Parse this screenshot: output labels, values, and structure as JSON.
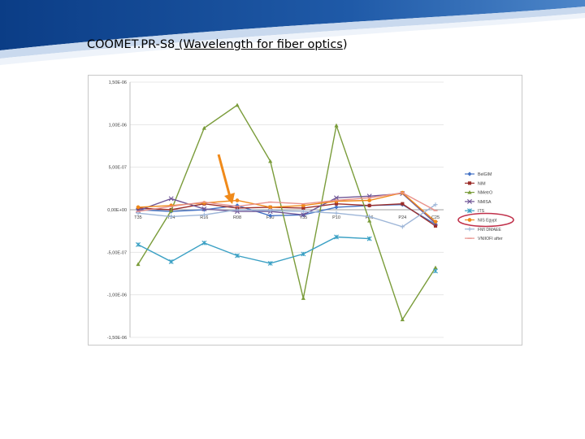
{
  "slide": {
    "title_main": "COOMET.PR-S8",
    "title_paren": " (Wavelength for fiber optics",
    "title_close": ")"
  },
  "colors": {
    "banner_blue": "#1f5aa8",
    "banner_dark": "#0b3d86",
    "arrow": "#f08a1a",
    "highlight": "#c0304a"
  },
  "chart_data": {
    "type": "line",
    "title": "",
    "xlabel": "",
    "ylabel": "",
    "categories": [
      "T35",
      "T24",
      "R16",
      "R08",
      "F30",
      "Y35",
      "P10",
      "P16",
      "P24",
      "C25"
    ],
    "ylim": [
      -1.5e-06,
      1.5e-06
    ],
    "yticks": [
      1.5e-06,
      1e-06,
      5e-07,
      0,
      -5e-07,
      -1e-06,
      -1.5e-06
    ],
    "ytick_labels": [
      "1,50E-06",
      "1,00E-06",
      "5,00E-07",
      "0,00E+00",
      "-5,00E-07",
      "-1,00E-06",
      "-1,50E-06"
    ],
    "grid": true,
    "legend_position": "right",
    "highlighted_legend_entry": "NIS Egypt",
    "series": [
      {
        "name": "BelGIM",
        "color": "#4472c4",
        "marker": "diamond",
        "values": [
          0,
          -2e-08,
          0,
          5e-08,
          -7e-08,
          -6e-08,
          3e-08,
          5e-08,
          6e-08,
          -1.7e-07
        ]
      },
      {
        "name": "NIM",
        "color": "#9c2e2a",
        "marker": "square",
        "values": [
          2e-08,
          0,
          7e-08,
          2e-08,
          3e-08,
          2e-08,
          7e-08,
          5e-08,
          7e-08,
          -1.9e-07
        ]
      },
      {
        "name": "NMetrO",
        "color": "#7a9c3a",
        "marker": "triangle",
        "values": [
          -6.4e-07,
          -1e-08,
          9.6e-07,
          1.23e-06,
          5.7e-07,
          -1.04e-06,
          9.9e-07,
          -1.3e-07,
          -1.29e-06,
          -6.8e-07
        ]
      },
      {
        "name": "NMISA",
        "color": "#6f5696",
        "marker": "x",
        "values": [
          -1e-08,
          1.3e-07,
          1e-08,
          -2e-08,
          -2e-08,
          -6e-08,
          1.4e-07,
          1.6e-07,
          1.9e-07,
          -1.6e-07
        ]
      },
      {
        "name": "ITS",
        "color": "#3aa0c4",
        "marker": "star",
        "values": [
          -4.1e-07,
          -6.1e-07,
          -3.9e-07,
          -5.4e-07,
          -6.3e-07,
          -5.2e-07,
          -3.2e-07,
          -3.4e-07,
          null,
          -7.2e-07
        ]
      },
      {
        "name": "NIS Egypt",
        "color": "#f08a1a",
        "marker": "circle",
        "values": [
          3e-08,
          5e-08,
          8e-08,
          1.1e-07,
          3e-08,
          5e-08,
          1e-07,
          1.1e-07,
          2e-07,
          -1.4e-07
        ]
      },
      {
        "name": "FMI DMAEE",
        "color": "#9eb6d8",
        "marker": "plus",
        "values": [
          -4e-08,
          -8e-08,
          -6e-08,
          0,
          -1e-08,
          -2e-08,
          -4e-08,
          -8e-08,
          -2e-07,
          6e-08
        ]
      },
      {
        "name": "VNIIOFI after",
        "color": "#e8928c",
        "marker": "dash",
        "values": [
          -2e-08,
          4e-08,
          9e-08,
          4e-08,
          9e-08,
          7e-08,
          1.1e-07,
          1.4e-07,
          2e-07,
          -1e-08
        ]
      }
    ]
  }
}
